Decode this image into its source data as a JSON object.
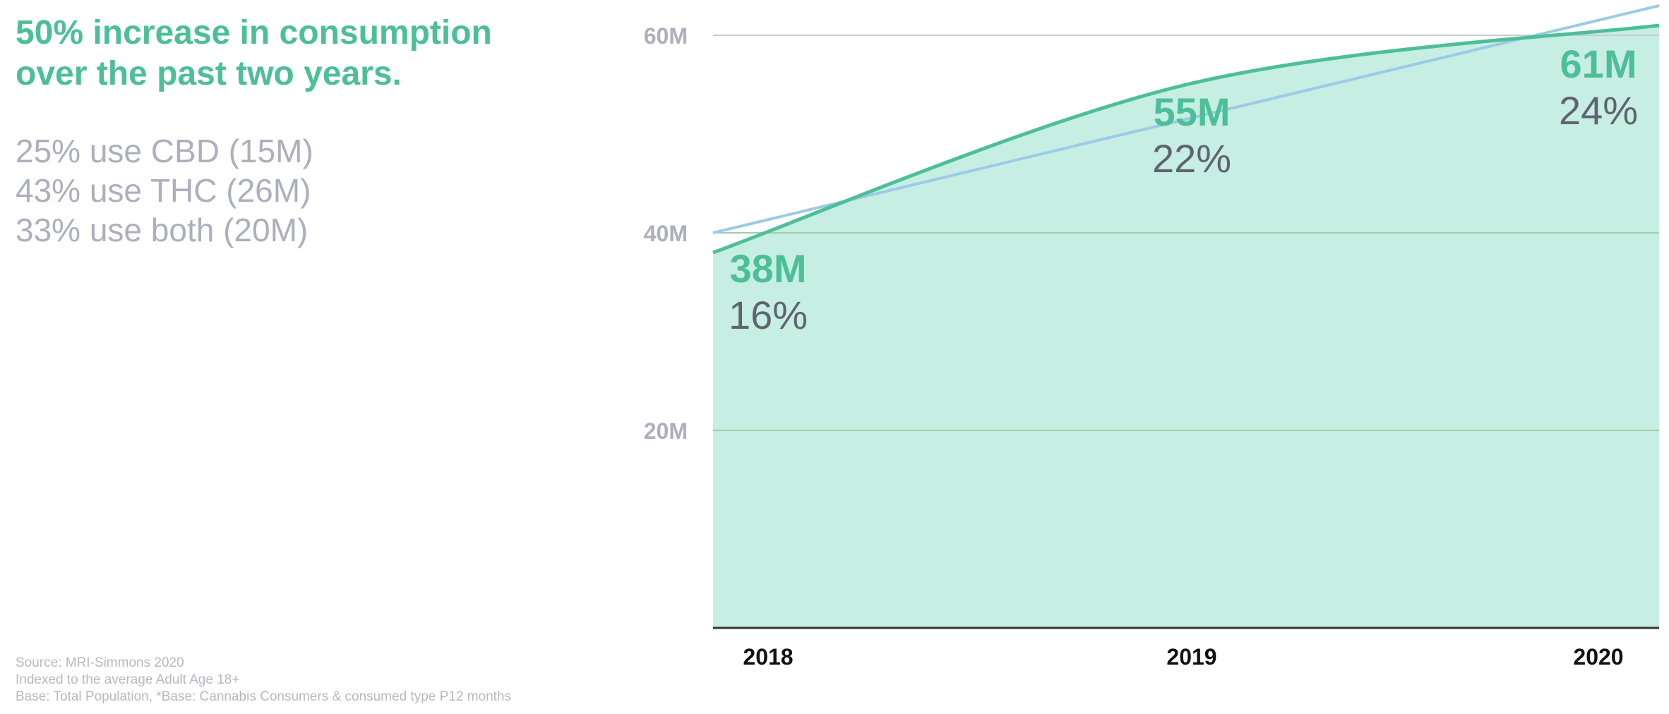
{
  "headline": {
    "line1": "50% increase in consumption",
    "line2": "over the past two years."
  },
  "stats": [
    "25% use CBD (15M)",
    "43% use THC (26M)",
    "33% use both (20M)"
  ],
  "sources": [
    "Source: MRI-Simmons 2020",
    "Indexed to the average Adult Age 18+",
    "Base: Total Population, *Base: Cannabis Consumers & consumed type P12 months"
  ],
  "colors": {
    "accent": "#4dbf98",
    "area_fill": "#c7eee2",
    "trend": "#9ccbe6",
    "percent_text": "#5f6470",
    "axis_text": "#adafbd"
  },
  "chart_data": {
    "type": "area",
    "x": [
      "2018",
      "2019",
      "2020"
    ],
    "ylim": [
      0,
      60
    ],
    "y_ticks": [
      "20M",
      "40M",
      "60M"
    ],
    "y_tick_values": [
      20,
      40,
      60
    ],
    "series": [
      {
        "values": [
          38,
          55,
          61
        ]
      }
    ],
    "trend": {
      "values": [
        40,
        51.5,
        63
      ]
    },
    "value_labels": [
      "38M",
      "55M",
      "61M"
    ],
    "percent_labels": [
      "16%",
      "22%",
      "24%"
    ],
    "grid": true
  }
}
